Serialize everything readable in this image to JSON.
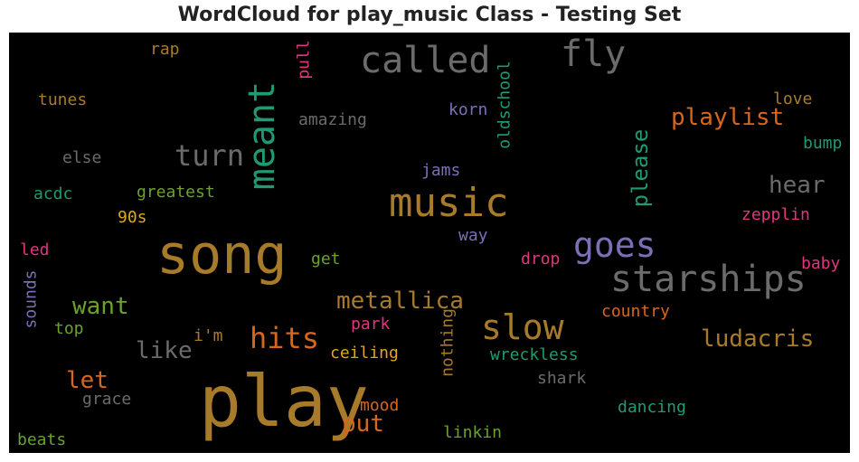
{
  "title": "WordCloud for play_music Class - Testing Set",
  "chart_data": {
    "type": "wordcloud",
    "background": "#000000",
    "palette": {
      "gold": "#a87b2a",
      "gray": "#6b6b6b",
      "teal": "#1f9a73",
      "orange": "#d8661c",
      "green": "#6aa22d",
      "purple": "#7a70b5",
      "pink": "#e0357f",
      "yellow": "#e0a81a"
    },
    "words": [
      {
        "text": "play",
        "color": "#a87b2a",
        "vertical": false
      },
      {
        "text": "song",
        "color": "#a87b2a",
        "vertical": false
      },
      {
        "text": "music",
        "color": "#a87b2a",
        "vertical": false
      },
      {
        "text": "called",
        "color": "#6b6b6b",
        "vertical": false
      },
      {
        "text": "starships",
        "color": "#6b6b6b",
        "vertical": false
      },
      {
        "text": "goes",
        "color": "#7a70b5",
        "vertical": false
      },
      {
        "text": "slow",
        "color": "#a87b2a",
        "vertical": false
      },
      {
        "text": "meant",
        "color": "#1f9a73",
        "vertical": true
      },
      {
        "text": "fly",
        "color": "#6b6b6b",
        "vertical": false
      },
      {
        "text": "turn",
        "color": "#6b6b6b",
        "vertical": false
      },
      {
        "text": "hits",
        "color": "#d8661c",
        "vertical": false
      },
      {
        "text": "metallica",
        "color": "#a87b2a",
        "vertical": false
      },
      {
        "text": "ludacris",
        "color": "#a87b2a",
        "vertical": false
      },
      {
        "text": "playlist",
        "color": "#d8661c",
        "vertical": false
      },
      {
        "text": "please",
        "color": "#1f9a73",
        "vertical": true
      },
      {
        "text": "want",
        "color": "#6aa22d",
        "vertical": false
      },
      {
        "text": "like",
        "color": "#6b6b6b",
        "vertical": false
      },
      {
        "text": "hear",
        "color": "#6b6b6b",
        "vertical": false
      },
      {
        "text": "put",
        "color": "#d8661c",
        "vertical": false
      },
      {
        "text": "let",
        "color": "#d8661c",
        "vertical": false
      },
      {
        "text": "oldschool",
        "color": "#1f9a73",
        "vertical": true
      },
      {
        "text": "amazing",
        "color": "#6b6b6b",
        "vertical": false
      },
      {
        "text": "pull",
        "color": "#e0357f",
        "vertical": true
      },
      {
        "text": "korn",
        "color": "#7a70b5",
        "vertical": false
      },
      {
        "text": "jams",
        "color": "#7a70b5",
        "vertical": false
      },
      {
        "text": "love",
        "color": "#a87b2a",
        "vertical": false
      },
      {
        "text": "bump",
        "color": "#1f9a73",
        "vertical": false
      },
      {
        "text": "zepplin",
        "color": "#e0357f",
        "vertical": false
      },
      {
        "text": "baby",
        "color": "#e0357f",
        "vertical": false
      },
      {
        "text": "country",
        "color": "#d8661c",
        "vertical": false
      },
      {
        "text": "wreckless",
        "color": "#1f9a73",
        "vertical": false
      },
      {
        "text": "nothing",
        "color": "#a87b2a",
        "vertical": true
      },
      {
        "text": "ceiling",
        "color": "#e0a81a",
        "vertical": false
      },
      {
        "text": "shark",
        "color": "#6b6b6b",
        "vertical": false
      },
      {
        "text": "dancing",
        "color": "#1f9a73",
        "vertical": false
      },
      {
        "text": "mood",
        "color": "#d8661c",
        "vertical": false
      },
      {
        "text": "linkin",
        "color": "#6aa22d",
        "vertical": false
      },
      {
        "text": "park",
        "color": "#e0357f",
        "vertical": false
      },
      {
        "text": "drop",
        "color": "#e0357f",
        "vertical": false
      },
      {
        "text": "way",
        "color": "#7a70b5",
        "vertical": false
      },
      {
        "text": "get",
        "color": "#6aa22d",
        "vertical": false
      },
      {
        "text": "i'm",
        "color": "#a87b2a",
        "vertical": false
      },
      {
        "text": "greatest",
        "color": "#6aa22d",
        "vertical": false
      },
      {
        "text": "acdc",
        "color": "#1f9a73",
        "vertical": false
      },
      {
        "text": "90s",
        "color": "#e0a81a",
        "vertical": false
      },
      {
        "text": "led",
        "color": "#e0357f",
        "vertical": false
      },
      {
        "text": "sounds",
        "color": "#7a70b5",
        "vertical": true
      },
      {
        "text": "top",
        "color": "#6aa22d",
        "vertical": false
      },
      {
        "text": "grace",
        "color": "#6b6b6b",
        "vertical": false
      },
      {
        "text": "beats",
        "color": "#6aa22d",
        "vertical": false
      },
      {
        "text": "tunes",
        "color": "#a87b2a",
        "vertical": false
      },
      {
        "text": "rap",
        "color": "#a87b2a",
        "vertical": false
      },
      {
        "text": "else",
        "color": "#6b6b6b",
        "vertical": false
      }
    ]
  }
}
